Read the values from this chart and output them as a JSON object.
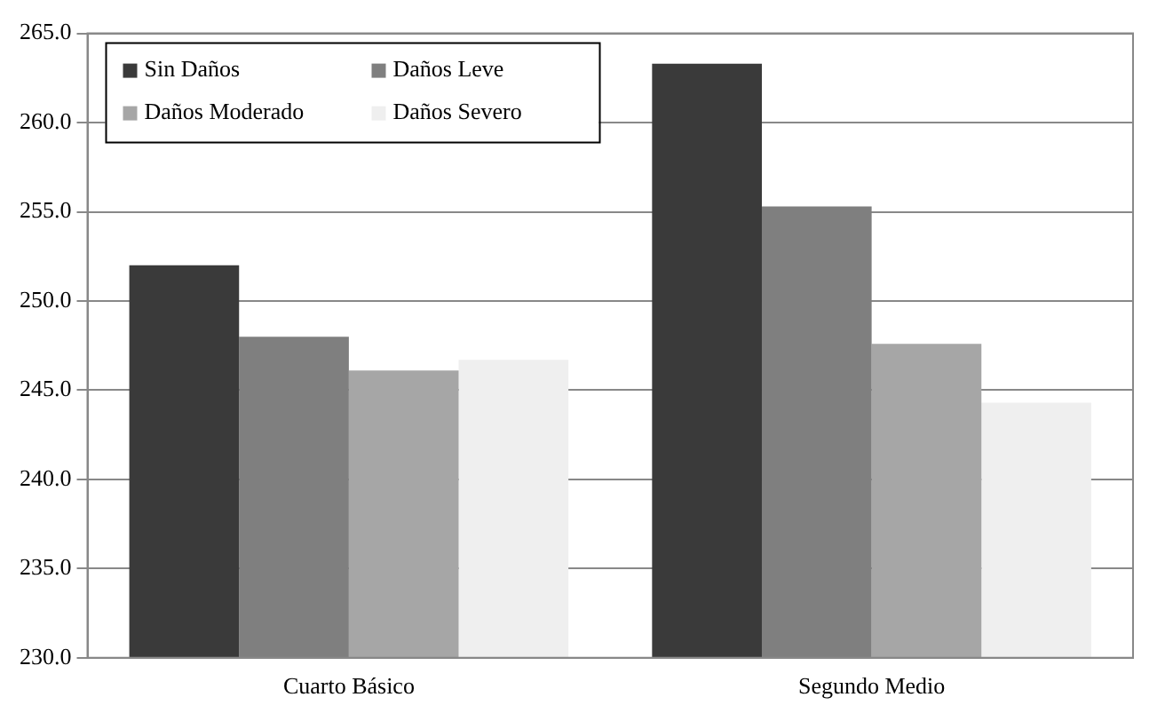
{
  "chart_data": {
    "type": "bar",
    "categories": [
      "Cuarto Básico",
      "Segundo Medio"
    ],
    "series": [
      {
        "name": "Sin Daños",
        "color": "#3a3a3a",
        "values": [
          252.0,
          263.3
        ]
      },
      {
        "name": "Daños Leve",
        "color": "#7f7f7f",
        "values": [
          248.0,
          255.3
        ]
      },
      {
        "name": "Daños Moderado",
        "color": "#a6a6a6",
        "values": [
          246.1,
          247.6
        ]
      },
      {
        "name": "Daños Severo",
        "color": "#efefef",
        "values": [
          246.7,
          244.3
        ]
      }
    ],
    "ylim": [
      230,
      265
    ],
    "yticks": [
      {
        "value": 230,
        "label": "230.0"
      },
      {
        "value": 235,
        "label": "235.0"
      },
      {
        "value": 240,
        "label": "240.0"
      },
      {
        "value": 245,
        "label": "245.0"
      },
      {
        "value": 250,
        "label": "250.0"
      },
      {
        "value": 255,
        "label": "255.0"
      },
      {
        "value": 260,
        "label": "260.0"
      },
      {
        "value": 265,
        "label": "265.0"
      }
    ],
    "grid": "y",
    "legend": "top left"
  }
}
